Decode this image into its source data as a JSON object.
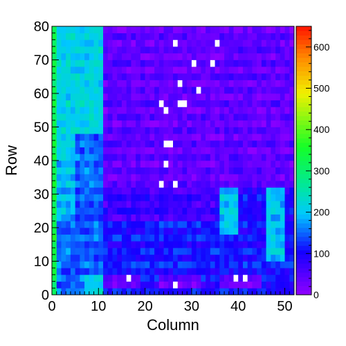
{
  "chart_data": {
    "type": "heatmap",
    "title": "",
    "xlabel": "Column",
    "ylabel": "Row",
    "xlim": [
      0,
      52
    ],
    "ylim": [
      0,
      80
    ],
    "zlim": [
      0,
      650
    ],
    "x_ticks": [
      "0",
      "10",
      "20",
      "30",
      "40",
      "50"
    ],
    "y_ticks": [
      "0",
      "10",
      "20",
      "30",
      "40",
      "50",
      "60",
      "70",
      "80"
    ],
    "z_ticks": [
      "0",
      "100",
      "200",
      "300",
      "400",
      "500",
      "600"
    ],
    "grid": false,
    "colormap": "rainbow (violet to red)",
    "cell_width_cols": 1,
    "cell_height_rows": 2,
    "regions": [
      {
        "name": "left-edge-green",
        "cols": [
          0,
          1
        ],
        "rows": [
          0,
          80
        ],
        "value": 330
      },
      {
        "name": "left-cyan-upper",
        "cols": [
          1,
          11
        ],
        "rows": [
          42,
          80
        ],
        "value": 215
      },
      {
        "name": "left-upper-block",
        "cols": [
          1,
          5
        ],
        "rows": [
          20,
          42
        ],
        "value": 190
      },
      {
        "name": "left-mid-block",
        "cols": [
          5,
          11
        ],
        "rows": [
          22,
          48
        ],
        "value": 150
      },
      {
        "name": "left-lower",
        "cols": [
          1,
          11
        ],
        "rows": [
          0,
          22
        ],
        "value": 150
      },
      {
        "name": "block-7-11-low",
        "cols": [
          7,
          11
        ],
        "rows": [
          0,
          6
        ],
        "value": 210
      },
      {
        "name": "upper-violet",
        "cols": [
          11,
          52
        ],
        "rows": [
          32,
          80
        ],
        "value": 40
      },
      {
        "name": "mid-blue",
        "cols": [
          11,
          37
        ],
        "rows": [
          22,
          32
        ],
        "value": 70
      },
      {
        "name": "lower-blue",
        "cols": [
          11,
          52
        ],
        "rows": [
          6,
          22
        ],
        "value": 110
      },
      {
        "name": "right-cyan-block",
        "cols": [
          36,
          40
        ],
        "rows": [
          18,
          32
        ],
        "value": 200
      },
      {
        "name": "right-cyan-block2",
        "cols": [
          46,
          50
        ],
        "rows": [
          10,
          32
        ],
        "value": 200
      },
      {
        "name": "bottom-strip",
        "cols": [
          11,
          52
        ],
        "rows": [
          0,
          6
        ],
        "value": 100
      },
      {
        "name": "bottom-violet-1",
        "cols": [
          11,
          19
        ],
        "rows": [
          1,
          5
        ],
        "value": 35
      },
      {
        "name": "bottom-violet-2",
        "cols": [
          23,
          32
        ],
        "rows": [
          1,
          5
        ],
        "value": 35
      },
      {
        "name": "bottom-violet-3",
        "cols": [
          36,
          45
        ],
        "rows": [
          1,
          5
        ],
        "value": 35
      }
    ],
    "empty_cells": [
      {
        "col": 26,
        "row": 74
      },
      {
        "col": 35,
        "row": 74
      },
      {
        "col": 30,
        "row": 68
      },
      {
        "col": 34,
        "row": 68
      },
      {
        "col": 27,
        "row": 62
      },
      {
        "col": 31,
        "row": 60
      },
      {
        "col": 23,
        "row": 56
      },
      {
        "col": 27,
        "row": 56
      },
      {
        "col": 28,
        "row": 56
      },
      {
        "col": 24,
        "row": 54
      },
      {
        "col": 24,
        "row": 44
      },
      {
        "col": 25,
        "row": 44
      },
      {
        "col": 24,
        "row": 38
      },
      {
        "col": 23,
        "row": 32
      },
      {
        "col": 26,
        "row": 32
      },
      {
        "col": 16,
        "row": 4
      },
      {
        "col": 26,
        "row": 2
      },
      {
        "col": 39,
        "row": 4
      },
      {
        "col": 41,
        "row": 4
      }
    ]
  }
}
